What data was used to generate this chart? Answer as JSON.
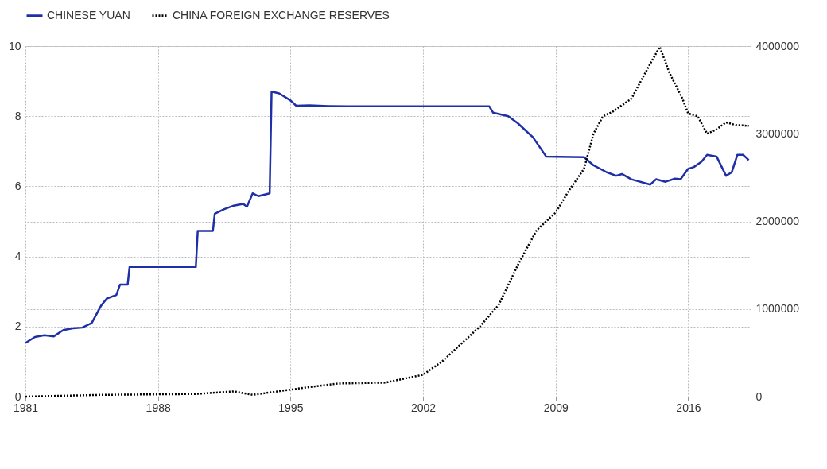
{
  "chart_data": {
    "type": "line",
    "xlim": [
      1981,
      2019.3
    ],
    "xticks": [
      1981,
      1988,
      1995,
      2002,
      2009,
      2016
    ],
    "ylim": [
      0,
      10
    ],
    "yticks": [
      0,
      2,
      4,
      6,
      8,
      10
    ],
    "y2lim": [
      0,
      4000000
    ],
    "y2ticks": [
      0,
      1000000,
      2000000,
      3000000,
      4000000
    ],
    "grid": true,
    "legend": "top left",
    "series": [
      {
        "name": "CHINESE YUAN",
        "color": "#1f2fa8",
        "line_style": "solid",
        "x": [
          1981.0,
          1981.5,
          1982,
          1982.5,
          1983,
          1983.5,
          1984,
          1984.5,
          1985,
          1985.3,
          1985.8,
          1986,
          1986.4,
          1986.5,
          1990.0,
          1990.1,
          1990.9,
          1991.0,
          1991.5,
          1992,
          1992.5,
          1992.7,
          1993,
          1993.3,
          1993.9,
          1994.0,
          1994.4,
          1995,
          1995.3,
          1996,
          1997,
          1998,
          2005.5,
          2005.7,
          2006.5,
          2007,
          2007.8,
          2008.5,
          2010.5,
          2011,
          2011.7,
          2012.2,
          2012.5,
          2013,
          2014,
          2014.3,
          2014.8,
          2015.3,
          2015.6,
          2016,
          2016.3,
          2016.7,
          2017.0,
          2017.5,
          2018.0,
          2018.3,
          2018.6,
          2018.9,
          2019.2
        ],
        "values": [
          1.53,
          1.7,
          1.75,
          1.72,
          1.9,
          1.95,
          1.97,
          2.1,
          2.6,
          2.8,
          2.9,
          3.2,
          3.2,
          3.7,
          3.7,
          4.73,
          4.73,
          5.22,
          5.35,
          5.45,
          5.5,
          5.42,
          5.8,
          5.72,
          5.8,
          8.7,
          8.65,
          8.45,
          8.3,
          8.31,
          8.29,
          8.28,
          8.28,
          8.1,
          8.0,
          7.8,
          7.4,
          6.85,
          6.83,
          6.6,
          6.4,
          6.3,
          6.35,
          6.2,
          6.05,
          6.2,
          6.13,
          6.22,
          6.2,
          6.5,
          6.55,
          6.7,
          6.9,
          6.85,
          6.3,
          6.4,
          6.9,
          6.9,
          6.75
        ]
      },
      {
        "name": "CHINA FOREIGN EXCHANGE RESERVES",
        "color": "#000000",
        "line_style": "dotted",
        "axis": "y2",
        "x": [
          1981,
          1985,
          1990,
          1992,
          1993,
          1994,
          1995,
          1996,
          1997.5,
          2000,
          2002,
          2003,
          2004,
          2005,
          2006,
          2007,
          2008,
          2009,
          2009.7,
          2010.5,
          2011.0,
          2011.5,
          2012,
          2013,
          2014.0,
          2014.5,
          2015,
          2015.7,
          2016,
          2016.5,
          2017,
          2017.5,
          2018,
          2018.5,
          2019.2
        ],
        "values": [
          0,
          20000,
          30000,
          60000,
          20000,
          50000,
          80000,
          110000,
          150000,
          160000,
          250000,
          400000,
          600000,
          800000,
          1050000,
          1500000,
          1900000,
          2100000,
          2350000,
          2600000,
          3000000,
          3200000,
          3250000,
          3400000,
          3800000,
          3990000,
          3700000,
          3400000,
          3230000,
          3200000,
          3000000,
          3050000,
          3130000,
          3100000,
          3090000
        ]
      }
    ]
  }
}
